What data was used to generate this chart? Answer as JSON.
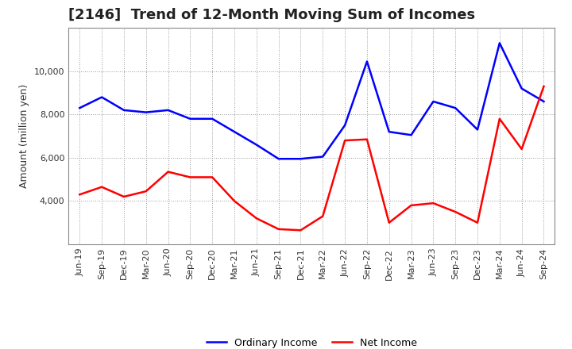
{
  "title": "[2146]  Trend of 12-Month Moving Sum of Incomes",
  "ylabel": "Amount (million yen)",
  "x_labels": [
    "Jun-19",
    "Sep-19",
    "Dec-19",
    "Mar-20",
    "Jun-20",
    "Sep-20",
    "Dec-20",
    "Mar-21",
    "Jun-21",
    "Sep-21",
    "Dec-21",
    "Mar-22",
    "Jun-22",
    "Sep-22",
    "Dec-22",
    "Mar-23",
    "Jun-23",
    "Sep-23",
    "Dec-23",
    "Mar-24",
    "Jun-24",
    "Sep-24"
  ],
  "ordinary_income": [
    8300,
    8800,
    8200,
    8100,
    8200,
    7800,
    7800,
    7200,
    6600,
    5950,
    5950,
    6050,
    7500,
    10450,
    7200,
    7050,
    8600,
    8300,
    7300,
    11300,
    9200,
    8600
  ],
  "net_income": [
    4300,
    4650,
    4200,
    4450,
    5350,
    5100,
    5100,
    4000,
    3200,
    2700,
    2650,
    3300,
    6800,
    6850,
    3000,
    3800,
    3900,
    3500,
    3000,
    7800,
    6400,
    9300
  ],
  "ordinary_color": "#0000ff",
  "net_color": "#ff0000",
  "ylim_min": 2000,
  "ylim_max": 12000,
  "yticks": [
    4000,
    6000,
    8000,
    10000
  ],
  "background_color": "#ffffff",
  "plot_bg_color": "#ffffff",
  "grid_color": "#999999",
  "title_fontsize": 13,
  "label_fontsize": 9,
  "tick_fontsize": 8,
  "legend_fontsize": 9,
  "line_width": 1.8
}
